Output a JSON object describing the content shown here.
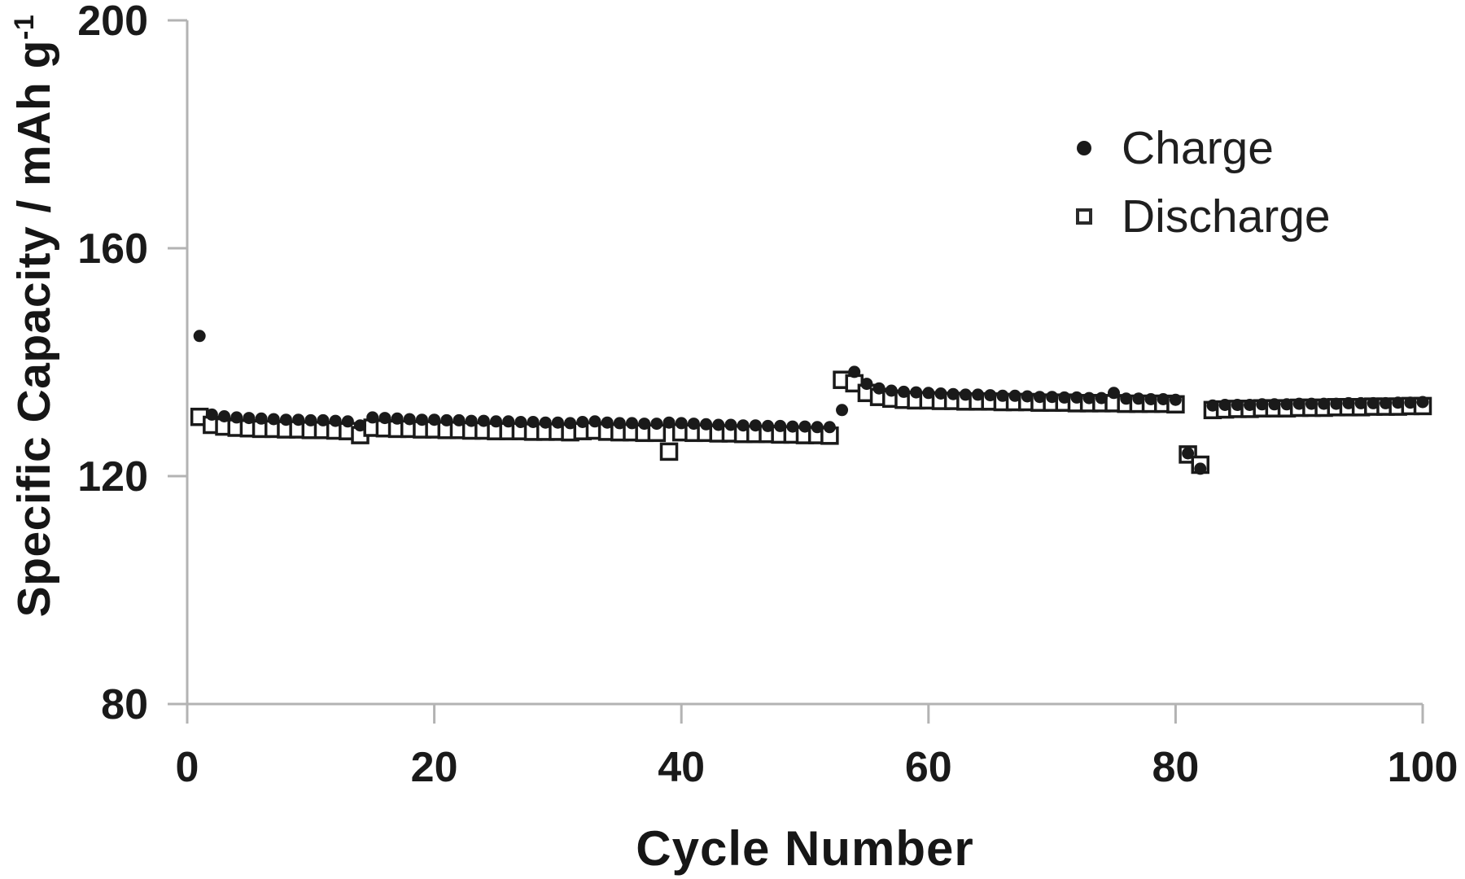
{
  "figure": {
    "background_color": "#ffffff",
    "ink_color": "#1a1a1a",
    "axis_line_color": "#b3b3b3"
  },
  "chart_data": {
    "type": "scatter",
    "title": "",
    "xlabel": "Cycle Number",
    "ylabel": "Specific Capacity / mAh g",
    "ylabel_superscript": "-1",
    "xlim": [
      0,
      100
    ],
    "ylim": [
      80,
      200
    ],
    "xticks": [
      0,
      20,
      40,
      60,
      80,
      100
    ],
    "yticks": [
      80,
      120,
      160,
      200
    ],
    "grid": false,
    "legend": {
      "position": "top-right",
      "entries": [
        {
          "label": "Charge",
          "marker": "filled-circle"
        },
        {
          "label": "Discharge",
          "marker": "open-square"
        }
      ]
    },
    "x_start": 1,
    "x_step": 1,
    "series": [
      {
        "name": "Charge",
        "marker": "filled-circle",
        "y": [
          144.6,
          130.8,
          130.5,
          130.3,
          130.2,
          130.1,
          130.0,
          129.9,
          129.9,
          129.8,
          129.8,
          129.7,
          129.6,
          128.9,
          130.3,
          130.2,
          130.1,
          130.0,
          129.9,
          129.9,
          129.8,
          129.8,
          129.7,
          129.7,
          129.6,
          129.6,
          129.5,
          129.5,
          129.4,
          129.4,
          129.3,
          129.5,
          129.6,
          129.4,
          129.3,
          129.3,
          129.2,
          129.2,
          129.4,
          129.3,
          129.2,
          129.1,
          129.0,
          129.0,
          128.9,
          128.9,
          128.8,
          128.8,
          128.7,
          128.7,
          128.6,
          128.6,
          131.6,
          138.3,
          136.2,
          135.4,
          135.0,
          134.8,
          134.7,
          134.6,
          134.5,
          134.4,
          134.3,
          134.3,
          134.2,
          134.1,
          134.1,
          134.0,
          133.9,
          133.9,
          133.8,
          133.8,
          133.7,
          133.7,
          134.6,
          133.6,
          133.6,
          133.5,
          133.5,
          133.4,
          124.0,
          121.3,
          132.4,
          132.5,
          132.5,
          132.5,
          132.6,
          132.6,
          132.6,
          132.7,
          132.7,
          132.7,
          132.7,
          132.8,
          132.8,
          132.8,
          132.8,
          132.9,
          132.9,
          133.0
        ]
      },
      {
        "name": "Discharge",
        "marker": "open-square",
        "y": [
          130.4,
          129.0,
          128.7,
          128.5,
          128.4,
          128.3,
          128.3,
          128.2,
          128.2,
          128.1,
          128.1,
          128.0,
          127.9,
          127.2,
          128.5,
          128.4,
          128.3,
          128.3,
          128.2,
          128.2,
          128.1,
          128.1,
          128.0,
          128.0,
          127.9,
          127.9,
          127.9,
          127.8,
          127.8,
          127.8,
          127.7,
          127.9,
          128.0,
          127.8,
          127.7,
          127.7,
          127.6,
          127.6,
          124.3,
          127.7,
          127.6,
          127.6,
          127.5,
          127.5,
          127.4,
          127.4,
          127.4,
          127.3,
          127.3,
          127.2,
          127.2,
          127.1,
          136.9,
          136.3,
          134.6,
          133.9,
          133.6,
          133.4,
          133.3,
          133.3,
          133.2,
          133.2,
          133.1,
          133.1,
          133.1,
          133.0,
          133.0,
          133.0,
          132.9,
          132.9,
          132.9,
          132.8,
          132.8,
          132.8,
          132.8,
          132.7,
          132.7,
          132.7,
          132.7,
          132.6,
          123.8,
          122.0,
          131.6,
          131.7,
          131.8,
          131.8,
          131.9,
          131.9,
          131.9,
          132.0,
          132.0,
          132.0,
          132.1,
          132.1,
          132.1,
          132.2,
          132.2,
          132.2,
          132.3,
          132.3
        ]
      }
    ]
  }
}
